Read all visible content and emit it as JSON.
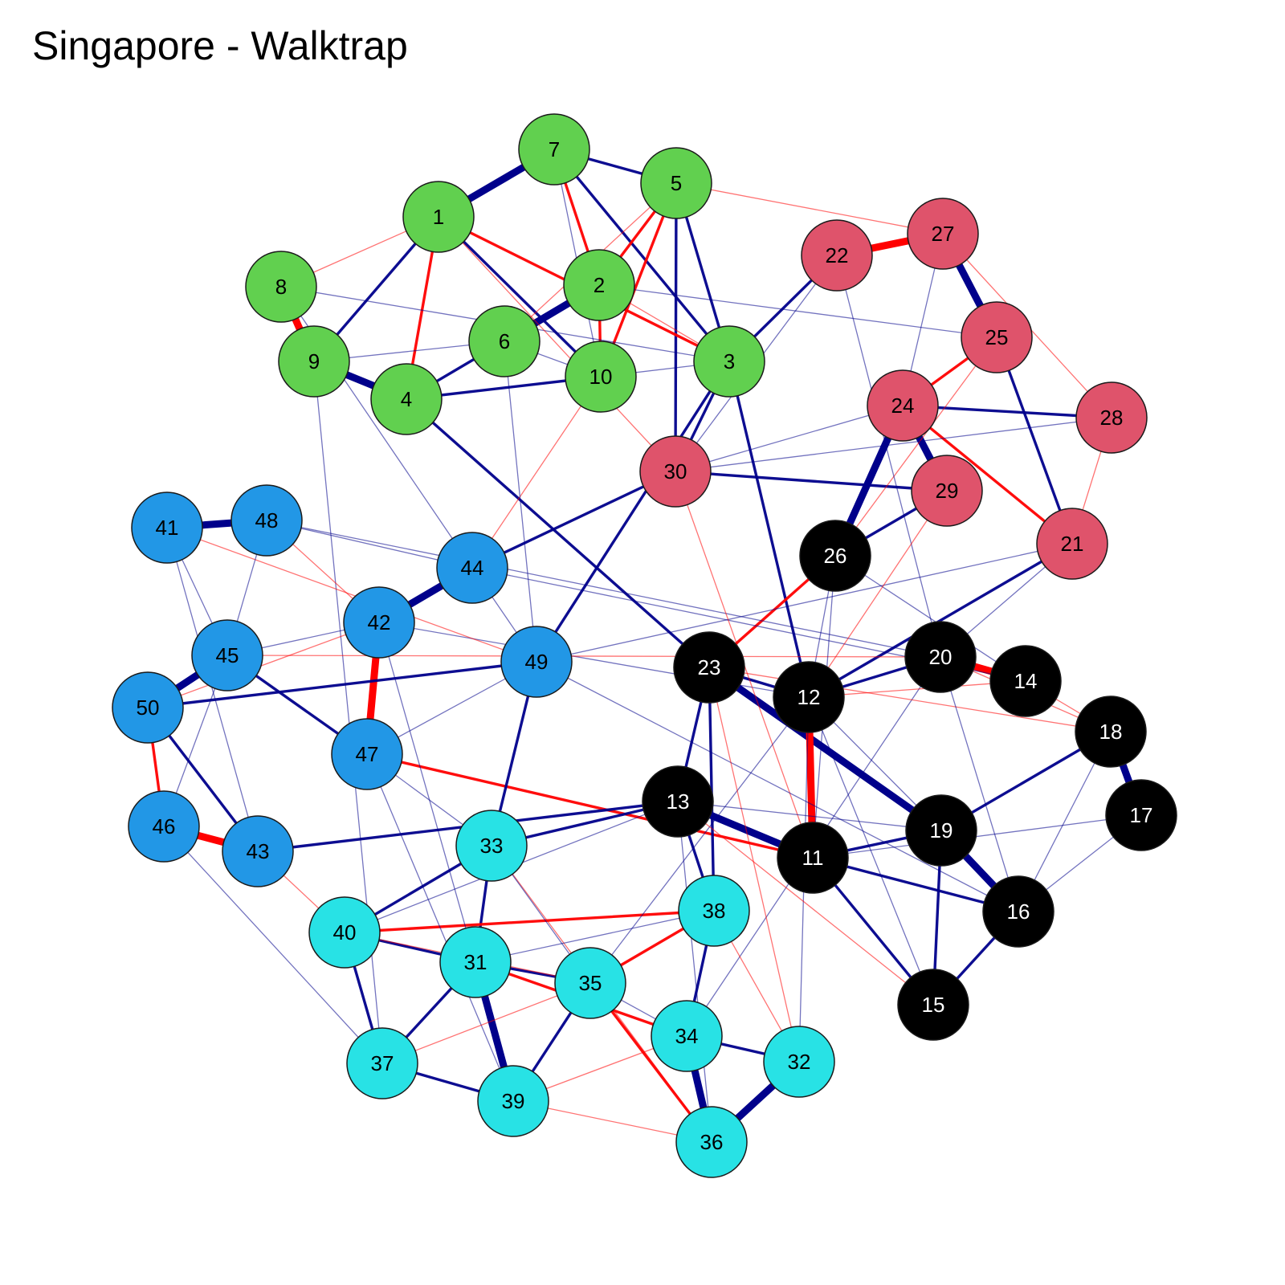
{
  "title": "Singapore - Walktrap",
  "communities": {
    "green": {
      "color": "#61d04f",
      "label_color": "#000000"
    },
    "red": {
      "color": "#df536b",
      "label_color": "#000000"
    },
    "blue": {
      "color": "#2297e6",
      "label_color": "#000000"
    },
    "cyan": {
      "color": "#28e2e5",
      "label_color": "#000000"
    },
    "black": {
      "color": "#000000",
      "label_color": "#ffffff"
    }
  },
  "edge_colors": {
    "positive": "#00008b",
    "negative": "#ff0000"
  },
  "nodes": [
    {
      "id": "1",
      "community": "green"
    },
    {
      "id": "2",
      "community": "green"
    },
    {
      "id": "3",
      "community": "green"
    },
    {
      "id": "4",
      "community": "green"
    },
    {
      "id": "5",
      "community": "green"
    },
    {
      "id": "6",
      "community": "green"
    },
    {
      "id": "7",
      "community": "green"
    },
    {
      "id": "8",
      "community": "green"
    },
    {
      "id": "9",
      "community": "green"
    },
    {
      "id": "10",
      "community": "green"
    },
    {
      "id": "11",
      "community": "black"
    },
    {
      "id": "12",
      "community": "black"
    },
    {
      "id": "13",
      "community": "black"
    },
    {
      "id": "14",
      "community": "black"
    },
    {
      "id": "15",
      "community": "black"
    },
    {
      "id": "16",
      "community": "black"
    },
    {
      "id": "17",
      "community": "black"
    },
    {
      "id": "18",
      "community": "black"
    },
    {
      "id": "19",
      "community": "black"
    },
    {
      "id": "20",
      "community": "black"
    },
    {
      "id": "21",
      "community": "red"
    },
    {
      "id": "22",
      "community": "red"
    },
    {
      "id": "23",
      "community": "black"
    },
    {
      "id": "24",
      "community": "red"
    },
    {
      "id": "25",
      "community": "red"
    },
    {
      "id": "26",
      "community": "black"
    },
    {
      "id": "27",
      "community": "red"
    },
    {
      "id": "28",
      "community": "red"
    },
    {
      "id": "29",
      "community": "red"
    },
    {
      "id": "30",
      "community": "red"
    },
    {
      "id": "31",
      "community": "cyan"
    },
    {
      "id": "32",
      "community": "cyan"
    },
    {
      "id": "33",
      "community": "cyan"
    },
    {
      "id": "34",
      "community": "cyan"
    },
    {
      "id": "35",
      "community": "cyan"
    },
    {
      "id": "36",
      "community": "cyan"
    },
    {
      "id": "37",
      "community": "cyan"
    },
    {
      "id": "38",
      "community": "cyan"
    },
    {
      "id": "39",
      "community": "cyan"
    },
    {
      "id": "40",
      "community": "cyan"
    },
    {
      "id": "41",
      "community": "blue"
    },
    {
      "id": "42",
      "community": "blue"
    },
    {
      "id": "43",
      "community": "blue"
    },
    {
      "id": "44",
      "community": "blue"
    },
    {
      "id": "45",
      "community": "blue"
    },
    {
      "id": "46",
      "community": "blue"
    },
    {
      "id": "47",
      "community": "blue"
    },
    {
      "id": "48",
      "community": "blue"
    },
    {
      "id": "49",
      "community": "blue"
    },
    {
      "id": "50",
      "community": "blue"
    }
  ],
  "edges": [
    {
      "a": "1",
      "b": "7",
      "sign": "positive",
      "strength": "strong"
    },
    {
      "a": "7",
      "b": "2",
      "sign": "negative",
      "strength": "medium"
    },
    {
      "a": "7",
      "b": "5",
      "sign": "positive",
      "strength": "medium"
    },
    {
      "a": "7",
      "b": "3",
      "sign": "positive",
      "strength": "medium"
    },
    {
      "a": "5",
      "b": "2",
      "sign": "negative",
      "strength": "medium"
    },
    {
      "a": "5",
      "b": "10",
      "sign": "negative",
      "strength": "medium"
    },
    {
      "a": "5",
      "b": "30",
      "sign": "positive",
      "strength": "medium"
    },
    {
      "a": "5",
      "b": "3",
      "sign": "positive",
      "strength": "medium"
    },
    {
      "a": "5",
      "b": "27",
      "sign": "negative",
      "strength": "weak"
    },
    {
      "a": "1",
      "b": "9",
      "sign": "positive",
      "strength": "medium"
    },
    {
      "a": "1",
      "b": "4",
      "sign": "negative",
      "strength": "medium"
    },
    {
      "a": "1",
      "b": "3",
      "sign": "negative",
      "strength": "medium"
    },
    {
      "a": "1",
      "b": "10",
      "sign": "positive",
      "strength": "medium"
    },
    {
      "a": "2",
      "b": "6",
      "sign": "positive",
      "strength": "strong"
    },
    {
      "a": "2",
      "b": "10",
      "sign": "negative",
      "strength": "medium"
    },
    {
      "a": "8",
      "b": "9",
      "sign": "negative",
      "strength": "strong"
    },
    {
      "a": "8",
      "b": "3",
      "sign": "positive",
      "strength": "weak"
    },
    {
      "a": "9",
      "b": "4",
      "sign": "positive",
      "strength": "strong"
    },
    {
      "a": "4",
      "b": "6",
      "sign": "positive",
      "strength": "medium"
    },
    {
      "a": "4",
      "b": "10",
      "sign": "positive",
      "strength": "medium"
    },
    {
      "a": "6",
      "b": "10",
      "sign": "positive",
      "strength": "weak"
    },
    {
      "a": "10",
      "b": "3",
      "sign": "positive",
      "strength": "weak"
    },
    {
      "a": "3",
      "b": "22",
      "sign": "positive",
      "strength": "medium"
    },
    {
      "a": "3",
      "b": "30",
      "sign": "positive",
      "strength": "medium"
    },
    {
      "a": "3",
      "b": "12",
      "sign": "positive",
      "strength": "medium"
    },
    {
      "a": "22",
      "b": "27",
      "sign": "negative",
      "strength": "strong"
    },
    {
      "a": "27",
      "b": "25",
      "sign": "positive",
      "strength": "strong"
    },
    {
      "a": "27",
      "b": "28",
      "sign": "negative",
      "strength": "weak"
    },
    {
      "a": "25",
      "b": "24",
      "sign": "negative",
      "strength": "medium"
    },
    {
      "a": "25",
      "b": "21",
      "sign": "positive",
      "strength": "medium"
    },
    {
      "a": "24",
      "b": "29",
      "sign": "positive",
      "strength": "strong"
    },
    {
      "a": "24",
      "b": "28",
      "sign": "positive",
      "strength": "medium"
    },
    {
      "a": "24",
      "b": "26",
      "sign": "positive",
      "strength": "strong"
    },
    {
      "a": "24",
      "b": "21",
      "sign": "negative",
      "strength": "medium"
    },
    {
      "a": "30",
      "b": "29",
      "sign": "positive",
      "strength": "medium"
    },
    {
      "a": "30",
      "b": "24",
      "sign": "positive",
      "strength": "weak"
    },
    {
      "a": "29",
      "b": "26",
      "sign": "positive",
      "strength": "medium"
    },
    {
      "a": "28",
      "b": "21",
      "sign": "negative",
      "strength": "weak"
    },
    {
      "a": "41",
      "b": "48",
      "sign": "positive",
      "strength": "strong"
    },
    {
      "a": "44",
      "b": "42",
      "sign": "positive",
      "strength": "strong"
    },
    {
      "a": "42",
      "b": "47",
      "sign": "negative",
      "strength": "strong"
    },
    {
      "a": "45",
      "b": "50",
      "sign": "positive",
      "strength": "strong"
    },
    {
      "a": "45",
      "b": "47",
      "sign": "positive",
      "strength": "medium"
    },
    {
      "a": "50",
      "b": "46",
      "sign": "negative",
      "strength": "medium"
    },
    {
      "a": "50",
      "b": "43",
      "sign": "positive",
      "strength": "medium"
    },
    {
      "a": "46",
      "b": "43",
      "sign": "negative",
      "strength": "strong"
    },
    {
      "a": "50",
      "b": "49",
      "sign": "positive",
      "strength": "medium"
    },
    {
      "a": "44",
      "b": "30",
      "sign": "positive",
      "strength": "medium"
    },
    {
      "a": "42",
      "b": "12",
      "sign": "positive",
      "strength": "weak"
    },
    {
      "a": "47",
      "b": "11",
      "sign": "negative",
      "strength": "medium"
    },
    {
      "a": "49",
      "b": "33",
      "sign": "positive",
      "strength": "medium"
    },
    {
      "a": "49",
      "b": "3",
      "sign": "positive",
      "strength": "medium"
    },
    {
      "a": "43",
      "b": "13",
      "sign": "positive",
      "strength": "medium"
    },
    {
      "a": "23",
      "b": "12",
      "sign": "positive",
      "strength": "medium"
    },
    {
      "a": "23",
      "b": "19",
      "sign": "positive",
      "strength": "strong"
    },
    {
      "a": "23",
      "b": "13",
      "sign": "positive",
      "strength": "medium"
    },
    {
      "a": "12",
      "b": "11",
      "sign": "negative",
      "strength": "strong"
    },
    {
      "a": "13",
      "b": "11",
      "sign": "positive",
      "strength": "strong"
    },
    {
      "a": "20",
      "b": "14",
      "sign": "negative",
      "strength": "strong"
    },
    {
      "a": "20",
      "b": "12",
      "sign": "positive",
      "strength": "medium"
    },
    {
      "a": "18",
      "b": "17",
      "sign": "positive",
      "strength": "strong"
    },
    {
      "a": "19",
      "b": "16",
      "sign": "positive",
      "strength": "strong"
    },
    {
      "a": "19",
      "b": "15",
      "sign": "positive",
      "strength": "medium"
    },
    {
      "a": "16",
      "b": "15",
      "sign": "positive",
      "strength": "medium"
    },
    {
      "a": "11",
      "b": "16",
      "sign": "positive",
      "strength": "medium"
    },
    {
      "a": "11",
      "b": "19",
      "sign": "positive",
      "strength": "medium"
    },
    {
      "a": "18",
      "b": "19",
      "sign": "positive",
      "strength": "medium"
    },
    {
      "a": "17",
      "b": "16",
      "sign": "positive",
      "strength": "weak"
    },
    {
      "a": "26",
      "b": "23",
      "sign": "negative",
      "strength": "medium"
    },
    {
      "a": "26",
      "b": "12",
      "sign": "positive",
      "strength": "weak"
    },
    {
      "a": "21",
      "b": "12",
      "sign": "positive",
      "strength": "medium"
    },
    {
      "a": "14",
      "b": "18",
      "sign": "negative",
      "strength": "weak"
    },
    {
      "a": "33",
      "b": "40",
      "sign": "positive",
      "strength": "medium"
    },
    {
      "a": "33",
      "b": "31",
      "sign": "positive",
      "strength": "medium"
    },
    {
      "a": "33",
      "b": "13",
      "sign": "positive",
      "strength": "medium"
    },
    {
      "a": "40",
      "b": "38",
      "sign": "negative",
      "strength": "medium"
    },
    {
      "a": "40",
      "b": "31",
      "sign": "positive",
      "strength": "medium"
    },
    {
      "a": "40",
      "b": "37",
      "sign": "positive",
      "strength": "medium"
    },
    {
      "a": "31",
      "b": "35",
      "sign": "positive",
      "strength": "medium"
    },
    {
      "a": "31",
      "b": "39",
      "sign": "positive",
      "strength": "strong"
    },
    {
      "a": "31",
      "b": "37",
      "sign": "positive",
      "strength": "medium"
    },
    {
      "a": "31",
      "b": "34",
      "sign": "negative",
      "strength": "medium"
    },
    {
      "a": "35",
      "b": "39",
      "sign": "positive",
      "strength": "medium"
    },
    {
      "a": "35",
      "b": "36",
      "sign": "negative",
      "strength": "medium"
    },
    {
      "a": "35",
      "b": "38",
      "sign": "negative",
      "strength": "medium"
    },
    {
      "a": "34",
      "b": "36",
      "sign": "positive",
      "strength": "strong"
    },
    {
      "a": "34",
      "b": "32",
      "sign": "positive",
      "strength": "medium"
    },
    {
      "a": "34",
      "b": "38",
      "sign": "positive",
      "strength": "medium"
    },
    {
      "a": "36",
      "b": "32",
      "sign": "positive",
      "strength": "strong"
    },
    {
      "a": "37",
      "b": "39",
      "sign": "positive",
      "strength": "medium"
    },
    {
      "a": "39",
      "b": "36",
      "sign": "negative",
      "strength": "weak"
    },
    {
      "a": "38",
      "b": "23",
      "sign": "positive",
      "strength": "medium"
    },
    {
      "a": "32",
      "b": "12",
      "sign": "positive",
      "strength": "weak"
    },
    {
      "a": "13",
      "b": "38",
      "sign": "positive",
      "strength": "medium"
    },
    {
      "a": "11",
      "b": "15",
      "sign": "positive",
      "strength": "medium"
    },
    {
      "a": "4",
      "b": "23",
      "sign": "positive",
      "strength": "medium"
    },
    {
      "a": "48",
      "b": "20",
      "sign": "positive",
      "strength": "weak"
    },
    {
      "a": "44",
      "b": "14",
      "sign": "positive",
      "strength": "weak"
    },
    {
      "a": "49",
      "b": "21",
      "sign": "positive",
      "strength": "weak"
    },
    {
      "a": "30",
      "b": "11",
      "sign": "negative",
      "strength": "weak"
    },
    {
      "a": "25",
      "b": "26",
      "sign": "negative",
      "strength": "weak"
    },
    {
      "a": "22",
      "b": "20",
      "sign": "positive",
      "strength": "weak"
    },
    {
      "a": "2",
      "b": "25",
      "sign": "positive",
      "strength": "weak"
    },
    {
      "a": "8",
      "b": "44",
      "sign": "positive",
      "strength": "weak"
    },
    {
      "a": "9",
      "b": "37",
      "sign": "positive",
      "strength": "weak"
    },
    {
      "a": "41",
      "b": "49",
      "sign": "negative",
      "strength": "weak"
    },
    {
      "a": "45",
      "b": "20",
      "sign": "negative",
      "strength": "weak"
    },
    {
      "a": "46",
      "b": "37",
      "sign": "positive",
      "strength": "weak"
    },
    {
      "a": "47",
      "b": "39",
      "sign": "positive",
      "strength": "weak"
    },
    {
      "a": "42",
      "b": "31",
      "sign": "positive",
      "strength": "weak"
    },
    {
      "a": "49",
      "b": "16",
      "sign": "positive",
      "strength": "weak"
    },
    {
      "a": "33",
      "b": "36",
      "sign": "negative",
      "strength": "weak"
    },
    {
      "a": "40",
      "b": "13",
      "sign": "positive",
      "strength": "weak"
    },
    {
      "a": "35",
      "b": "12",
      "sign": "positive",
      "strength": "weak"
    },
    {
      "a": "34",
      "b": "20",
      "sign": "positive",
      "strength": "weak"
    },
    {
      "a": "32",
      "b": "23",
      "sign": "negative",
      "strength": "weak"
    },
    {
      "a": "15",
      "b": "13",
      "sign": "negative",
      "strength": "weak"
    },
    {
      "a": "17",
      "b": "11",
      "sign": "positive",
      "strength": "weak"
    },
    {
      "a": "18",
      "b": "23",
      "sign": "negative",
      "strength": "weak"
    },
    {
      "a": "14",
      "b": "26",
      "sign": "positive",
      "strength": "weak"
    },
    {
      "a": "28",
      "b": "30",
      "sign": "positive",
      "strength": "weak"
    },
    {
      "a": "27",
      "b": "24",
      "sign": "positive",
      "strength": "weak"
    },
    {
      "a": "22",
      "b": "30",
      "sign": "positive",
      "strength": "weak"
    },
    {
      "a": "10",
      "b": "44",
      "sign": "negative",
      "strength": "weak"
    },
    {
      "a": "6",
      "b": "49",
      "sign": "positive",
      "strength": "weak"
    },
    {
      "a": "1",
      "b": "30",
      "sign": "negative",
      "strength": "weak"
    },
    {
      "a": "7",
      "b": "10",
      "sign": "positive",
      "strength": "weak"
    },
    {
      "a": "2",
      "b": "3",
      "sign": "negative",
      "strength": "weak"
    },
    {
      "a": "5",
      "b": "6",
      "sign": "negative",
      "strength": "weak"
    },
    {
      "a": "8",
      "b": "1",
      "sign": "negative",
      "strength": "weak"
    },
    {
      "a": "9",
      "b": "6",
      "sign": "positive",
      "strength": "weak"
    },
    {
      "a": "48",
      "b": "45",
      "sign": "positive",
      "strength": "weak"
    },
    {
      "a": "41",
      "b": "45",
      "sign": "positive",
      "strength": "weak"
    },
    {
      "a": "41",
      "b": "43",
      "sign": "positive",
      "strength": "weak"
    },
    {
      "a": "48",
      "b": "42",
      "sign": "negative",
      "strength": "weak"
    },
    {
      "a": "48",
      "b": "44",
      "sign": "positive",
      "strength": "weak"
    },
    {
      "a": "44",
      "b": "49",
      "sign": "positive",
      "strength": "weak"
    },
    {
      "a": "42",
      "b": "45",
      "sign": "positive",
      "strength": "weak"
    },
    {
      "a": "42",
      "b": "50",
      "sign": "negative",
      "strength": "weak"
    },
    {
      "a": "47",
      "b": "49",
      "sign": "positive",
      "strength": "weak"
    },
    {
      "a": "47",
      "b": "33",
      "sign": "positive",
      "strength": "weak"
    },
    {
      "a": "43",
      "b": "40",
      "sign": "negative",
      "strength": "weak"
    },
    {
      "a": "46",
      "b": "45",
      "sign": "positive",
      "strength": "weak"
    },
    {
      "a": "12",
      "b": "19",
      "sign": "positive",
      "strength": "weak"
    },
    {
      "a": "12",
      "b": "14",
      "sign": "negative",
      "strength": "weak"
    },
    {
      "a": "20",
      "b": "18",
      "sign": "negative",
      "strength": "weak"
    },
    {
      "a": "20",
      "b": "16",
      "sign": "positive",
      "strength": "weak"
    },
    {
      "a": "13",
      "b": "19",
      "sign": "positive",
      "strength": "weak"
    },
    {
      "a": "16",
      "b": "18",
      "sign": "positive",
      "strength": "weak"
    },
    {
      "a": "15",
      "b": "12",
      "sign": "positive",
      "strength": "weak"
    },
    {
      "a": "26",
      "b": "11",
      "sign": "positive",
      "strength": "weak"
    },
    {
      "a": "21",
      "b": "20",
      "sign": "positive",
      "strength": "weak"
    },
    {
      "a": "29",
      "b": "12",
      "sign": "negative",
      "strength": "weak"
    },
    {
      "a": "38",
      "b": "32",
      "sign": "negative",
      "strength": "weak"
    },
    {
      "a": "31",
      "b": "38",
      "sign": "positive",
      "strength": "weak"
    },
    {
      "a": "35",
      "b": "34",
      "sign": "positive",
      "strength": "weak"
    },
    {
      "a": "39",
      "b": "34",
      "sign": "negative",
      "strength": "weak"
    },
    {
      "a": "37",
      "b": "35",
      "sign": "negative",
      "strength": "weak"
    },
    {
      "a": "33",
      "b": "35",
      "sign": "positive",
      "strength": "weak"
    },
    {
      "a": "36",
      "b": "13",
      "sign": "positive",
      "strength": "weak"
    },
    {
      "a": "40",
      "b": "35",
      "sign": "negative",
      "strength": "weak"
    }
  ]
}
